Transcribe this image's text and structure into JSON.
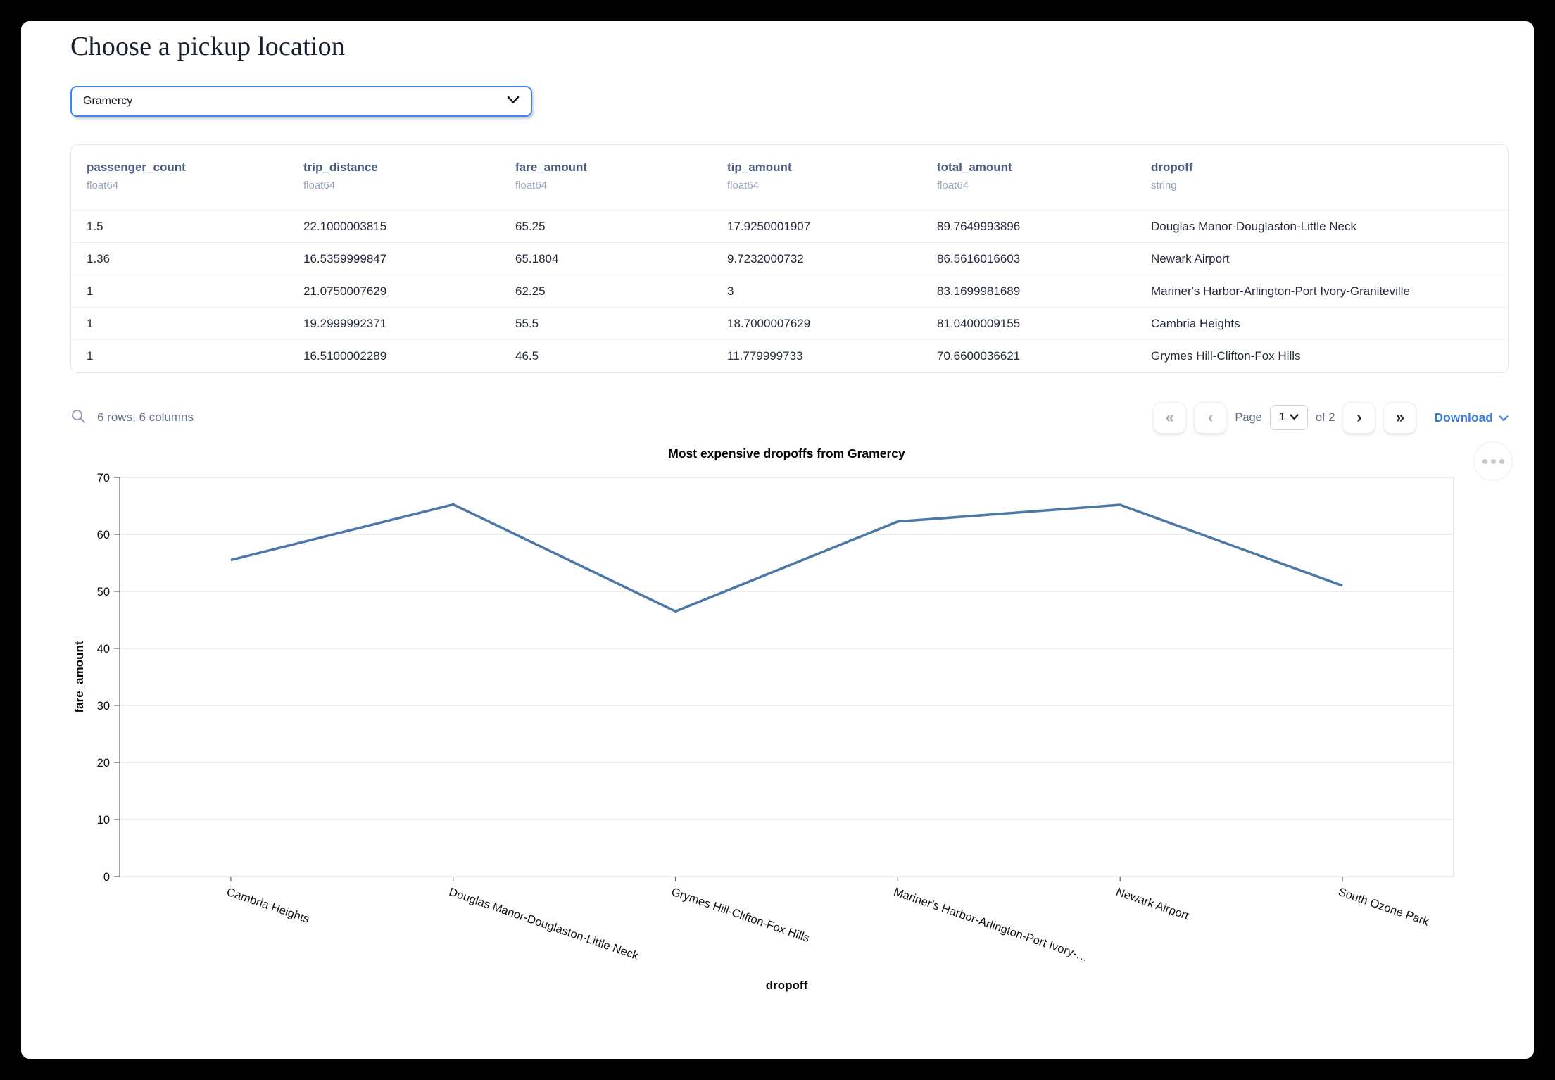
{
  "header": {
    "title": "Choose a pickup location"
  },
  "pickup_select": {
    "value": "Gramercy"
  },
  "table": {
    "columns": [
      {
        "name": "passenger_count",
        "type": "float64"
      },
      {
        "name": "trip_distance",
        "type": "float64"
      },
      {
        "name": "fare_amount",
        "type": "float64"
      },
      {
        "name": "tip_amount",
        "type": "float64"
      },
      {
        "name": "total_amount",
        "type": "float64"
      },
      {
        "name": "dropoff",
        "type": "string"
      }
    ],
    "rows": [
      [
        "1.5",
        "22.1000003815",
        "65.25",
        "17.9250001907",
        "89.7649993896",
        "Douglas Manor-Douglaston-Little Neck"
      ],
      [
        "1.36",
        "16.5359999847",
        "65.1804",
        "9.7232000732",
        "86.5616016603",
        "Newark Airport"
      ],
      [
        "1",
        "21.0750007629",
        "62.25",
        "3",
        "83.1699981689",
        "Mariner's Harbor-Arlington-Port Ivory-Graniteville"
      ],
      [
        "1",
        "19.2999992371",
        "55.5",
        "18.7000007629",
        "81.0400009155",
        "Cambria Heights"
      ],
      [
        "1",
        "16.5100002289",
        "46.5",
        "11.779999733",
        "70.6600036621",
        "Grymes Hill-Clifton-Fox Hills"
      ]
    ],
    "summary": "6 rows, 6 columns",
    "pagination": {
      "first": "«",
      "prev": "‹",
      "next": "›",
      "last": "»",
      "page_label": "Page",
      "page_value": "1",
      "of_label": "of 2"
    },
    "download_label": "Download"
  },
  "chart_data": {
    "type": "line",
    "title": "Most expensive dropoffs from Gramercy",
    "xlabel": "dropoff",
    "ylabel": "fare_amount",
    "categories": [
      "Cambria Heights",
      "Douglas Manor-Douglaston-Little Neck",
      "Grymes Hill-Clifton-Fox Hills",
      "Mariner's Harbor-Arlington-Port Ivory-…",
      "Newark Airport",
      "South Ozone Park"
    ],
    "values": [
      55.5,
      65.25,
      46.5,
      62.25,
      65.1804,
      51
    ],
    "ylim": [
      0,
      70
    ],
    "yticks": [
      0,
      10,
      20,
      30,
      40,
      50,
      60,
      70
    ],
    "x_scale": "point",
    "grid": true,
    "legend": "none",
    "line_color": "#4c78a8"
  },
  "colors": {
    "accent_blue": "#3f86e0",
    "link_blue": "#3b7ddd",
    "chart_line": "#4c78a8"
  }
}
